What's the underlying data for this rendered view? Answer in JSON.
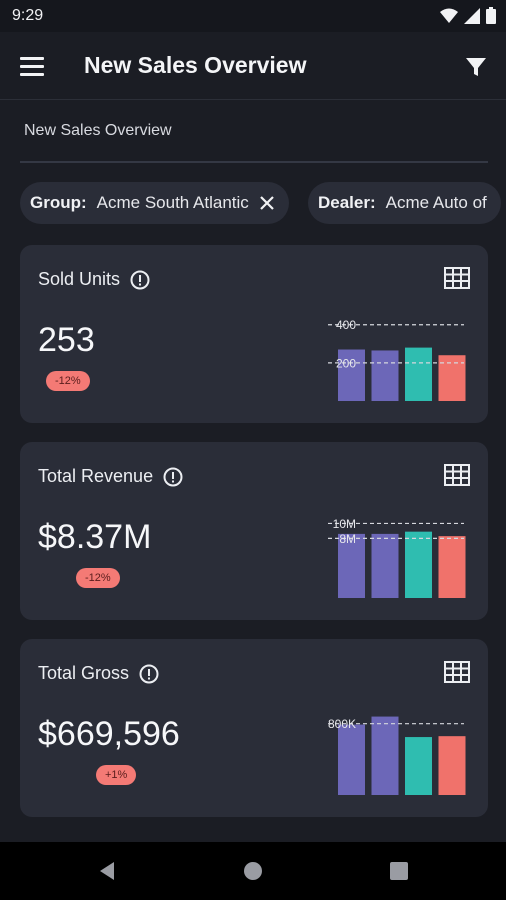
{
  "status": {
    "time": "9:29"
  },
  "app_bar": {
    "title": "New Sales Overview"
  },
  "section": {
    "title": "New Sales Overview"
  },
  "chips": [
    {
      "key": "Group:",
      "value": "Acme South Atlantic"
    },
    {
      "key": "Dealer:",
      "value": "Acme Auto of"
    }
  ],
  "colors": {
    "purple": "#6c67b8",
    "teal": "#2fbdb0",
    "salmon": "#f0726b",
    "badge": "#f47a75"
  },
  "cards": [
    {
      "title": "Sold Units",
      "value": "253",
      "badge": "-12%",
      "chart_data": {
        "type": "bar",
        "values": [
          270,
          265,
          280,
          240
        ],
        "reference_lines": [
          400,
          200
        ],
        "reference_labels": [
          "400",
          "200"
        ],
        "ylim": [
          0,
          430
        ]
      }
    },
    {
      "title": "Total Revenue",
      "value": "$8.37M",
      "badge": "-12%",
      "chart_data": {
        "type": "bar",
        "values": [
          8.6,
          8.6,
          8.9,
          8.3
        ],
        "reference_lines": [
          10,
          8
        ],
        "reference_labels": [
          "10M",
          "8M"
        ],
        "ylim": [
          0,
          11
        ]
      }
    },
    {
      "title": "Total Gross",
      "value": "$669,596",
      "badge": "+1%",
      "chart_data": {
        "type": "bar",
        "values": [
          790,
          880,
          650,
          660
        ],
        "reference_lines": [
          800
        ],
        "reference_labels": [
          "800K"
        ],
        "ylim": [
          0,
          920
        ]
      }
    }
  ]
}
